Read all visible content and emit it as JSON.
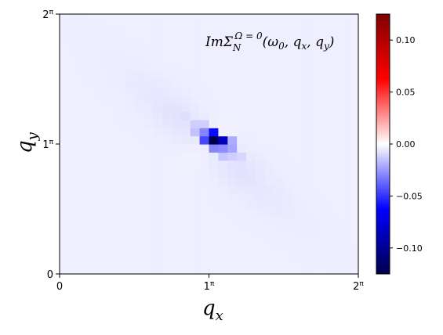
{
  "chart_data": {
    "type": "heatmap",
    "annotation": {
      "prefix": "ImΣ",
      "sub": "N",
      "sup": "Ω = 0",
      "args": "(ω",
      "args_sub": "0",
      "args_rest": ", q",
      "args_sub2": "x",
      "args_rest2": ", q",
      "args_sub3": "y",
      "args_close": ")"
    },
    "xlabel": "q",
    "xlabel_sub": "x",
    "ylabel": "q",
    "ylabel_sub": "y",
    "x_ticks": [
      {
        "value": 0,
        "label": "0",
        "sup": ""
      },
      {
        "value": 1,
        "label": "1",
        "sup": "π"
      },
      {
        "value": 2,
        "label": "2",
        "sup": "π"
      }
    ],
    "y_ticks": [
      {
        "value": 0,
        "label": "0",
        "sup": ""
      },
      {
        "value": 1,
        "label": "1",
        "sup": "π"
      },
      {
        "value": 2,
        "label": "2",
        "sup": "π"
      }
    ],
    "xlim": [
      0,
      2
    ],
    "ylim": [
      0,
      2
    ],
    "grid_size": 32,
    "colormap": "seismic",
    "vlim": [
      -0.125,
      0.125
    ],
    "colorbar_ticks": [
      {
        "value": 0.1,
        "label": "0.10"
      },
      {
        "value": 0.05,
        "label": "0.05"
      },
      {
        "value": 0.0,
        "label": "0.00"
      },
      {
        "value": -0.05,
        "label": "−0.05"
      },
      {
        "value": -0.1,
        "label": "−0.10"
      }
    ],
    "features": {
      "background": -0.004,
      "minimum": {
        "qx": 1.04,
        "qy": 1.04,
        "value": -0.125
      },
      "neighbors": [
        {
          "qx": 1.1,
          "qy": 1.04,
          "value": -0.085
        },
        {
          "qx": 1.04,
          "qy": 1.1,
          "value": -0.06
        },
        {
          "qx": 0.98,
          "qy": 1.04,
          "value": -0.045
        },
        {
          "qx": 1.04,
          "qy": 0.98,
          "value": -0.03
        },
        {
          "qx": 0.98,
          "qy": 1.1,
          "value": -0.03
        },
        {
          "qx": 1.1,
          "qy": 0.98,
          "value": -0.028
        },
        {
          "qx": 1.16,
          "qy": 0.98,
          "value": -0.022
        },
        {
          "qx": 1.16,
          "qy": 1.04,
          "value": -0.02
        },
        {
          "qx": 0.92,
          "qy": 1.1,
          "value": -0.015
        },
        {
          "qx": 1.1,
          "qy": 0.92,
          "value": -0.014
        },
        {
          "qx": 0.92,
          "qy": 1.16,
          "value": -0.012
        },
        {
          "qx": 1.22,
          "qy": 0.92,
          "value": -0.01
        },
        {
          "qx": 0.98,
          "qy": 1.16,
          "value": -0.012
        },
        {
          "qx": 1.16,
          "qy": 0.92,
          "value": -0.012
        },
        {
          "qx": 0.86,
          "qy": 1.22,
          "value": -0.008
        },
        {
          "qx": 1.22,
          "qy": 0.86,
          "value": -0.007
        }
      ]
    }
  }
}
